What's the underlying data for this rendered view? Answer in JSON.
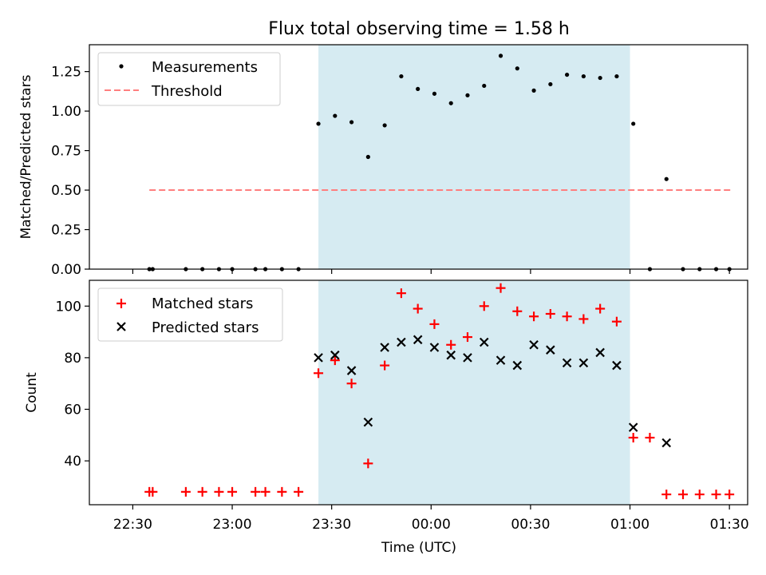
{
  "title": "Flux total observing time = 1.58 h",
  "chart_data": [
    {
      "type": "scatter",
      "ylabel": "Matched/Predicted stars",
      "ylim": [
        0,
        1.42
      ],
      "yticks": [
        0.0,
        0.25,
        0.5,
        0.75,
        1.0,
        1.25
      ],
      "ytick_labels": [
        "0.00",
        "0.25",
        "0.50",
        "0.75",
        "1.00",
        "1.25"
      ],
      "legend": {
        "placement": "upper left",
        "entries": [
          "Measurements",
          "Threshold"
        ]
      },
      "span": {
        "x0": "23:26",
        "x1": "01:00",
        "color": "#add8e6"
      },
      "series": [
        {
          "name": "Measurements",
          "marker": "dot",
          "color": "#000000",
          "x": [
            "22:35",
            "22:36",
            "22:46",
            "22:51",
            "22:56",
            "23:00",
            "23:07",
            "23:10",
            "23:15",
            "23:20",
            "23:26",
            "23:31",
            "23:36",
            "23:41",
            "23:46",
            "23:51",
            "23:56",
            "00:01",
            "00:06",
            "00:11",
            "00:16",
            "00:21",
            "00:26",
            "00:31",
            "00:36",
            "00:41",
            "00:46",
            "00:51",
            "00:56",
            "01:01",
            "01:06",
            "01:11",
            "01:16",
            "01:21",
            "01:26",
            "01:30"
          ],
          "y": [
            0,
            0,
            0,
            0,
            0,
            0,
            0,
            0,
            0,
            0,
            0.92,
            0.97,
            0.93,
            0.71,
            0.91,
            1.22,
            1.14,
            1.11,
            1.05,
            1.1,
            1.16,
            1.35,
            1.27,
            1.13,
            1.17,
            1.23,
            1.22,
            1.21,
            1.22,
            0.92,
            0,
            0.57,
            0,
            0,
            0,
            0
          ]
        },
        {
          "name": "Threshold",
          "style": "dashed",
          "color": "#ff7f7f",
          "x": [
            "22:35",
            "01:31"
          ],
          "y": [
            0.5,
            0.5
          ]
        }
      ]
    },
    {
      "type": "scatter",
      "xlabel": "Time (UTC)",
      "ylabel": "Count",
      "ylim": [
        23,
        110
      ],
      "yticks": [
        40,
        60,
        80,
        100
      ],
      "xticks": [
        "22:30",
        "23:00",
        "23:30",
        "00:00",
        "00:30",
        "01:00",
        "01:30"
      ],
      "legend": {
        "placement": "upper left",
        "entries": [
          "Matched stars",
          "Predicted stars"
        ]
      },
      "span": {
        "x0": "23:26",
        "x1": "01:00",
        "color": "#add8e6"
      },
      "series": [
        {
          "name": "Matched stars",
          "marker": "plus",
          "color": "#ff0000",
          "x": [
            "22:35",
            "22:36",
            "22:46",
            "22:51",
            "22:56",
            "23:00",
            "23:07",
            "23:10",
            "23:15",
            "23:20",
            "23:26",
            "23:31",
            "23:36",
            "23:41",
            "23:46",
            "23:51",
            "23:56",
            "00:01",
            "00:06",
            "00:11",
            "00:16",
            "00:21",
            "00:26",
            "00:31",
            "00:36",
            "00:41",
            "00:46",
            "00:51",
            "00:56",
            "01:01",
            "01:06",
            "01:11",
            "01:16",
            "01:21",
            "01:26",
            "01:30"
          ],
          "y": [
            28,
            28,
            28,
            28,
            28,
            28,
            28,
            28,
            28,
            28,
            74,
            79,
            70,
            39,
            77,
            105,
            99,
            93,
            85,
            88,
            100,
            107,
            98,
            96,
            97,
            96,
            95,
            99,
            94,
            49,
            49,
            27,
            27,
            27,
            27,
            27
          ]
        },
        {
          "name": "Predicted stars",
          "marker": "x",
          "color": "#000000",
          "x": [
            "23:26",
            "23:31",
            "23:36",
            "23:41",
            "23:46",
            "23:51",
            "23:56",
            "00:01",
            "00:06",
            "00:11",
            "00:16",
            "00:21",
            "00:26",
            "00:31",
            "00:36",
            "00:41",
            "00:46",
            "00:51",
            "00:56",
            "01:01",
            "01:11"
          ],
          "y": [
            80,
            81,
            75,
            55,
            84,
            86,
            87,
            84,
            81,
            80,
            86,
            79,
            77,
            85,
            83,
            78,
            78,
            82,
            77,
            53,
            47
          ]
        }
      ]
    }
  ]
}
